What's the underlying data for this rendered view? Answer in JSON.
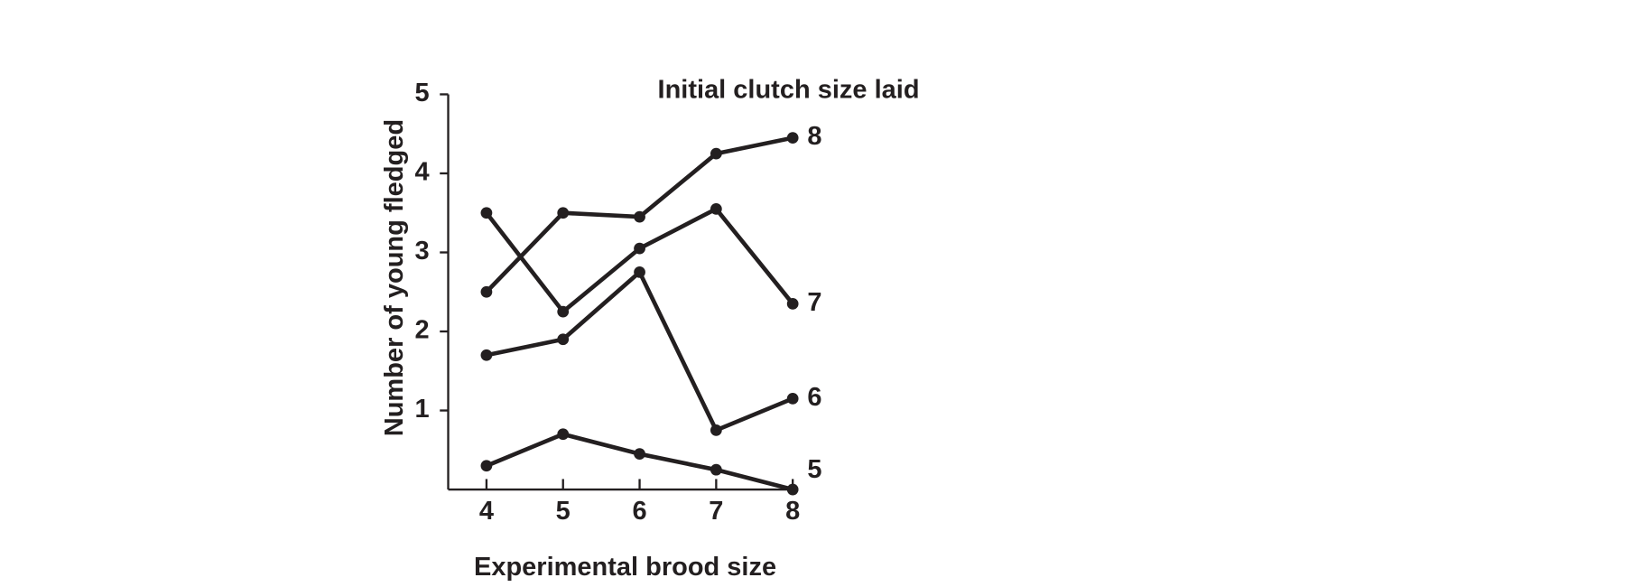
{
  "chart_data": {
    "type": "line",
    "title": "Initial clutch size laid",
    "x_label": "Experimental brood size",
    "y_label": "Number of young fledged",
    "x": [
      4,
      5,
      6,
      7,
      8
    ],
    "xlim": [
      3.5,
      8
    ],
    "xticks": [
      4,
      5,
      6,
      7,
      8
    ],
    "ylim": [
      0,
      5
    ],
    "yticks": [
      1,
      2,
      3,
      4,
      5
    ],
    "series": [
      {
        "name": "8",
        "color": "#231f20",
        "values": [
          2.5,
          3.5,
          3.45,
          4.25,
          4.45
        ]
      },
      {
        "name": "7",
        "color": "#231f20",
        "values": [
          3.5,
          2.25,
          3.05,
          3.55,
          2.35
        ]
      },
      {
        "name": "6",
        "color": "#231f20",
        "values": [
          1.7,
          1.9,
          2.75,
          0.75,
          1.15
        ]
      },
      {
        "name": "5",
        "color": "#231f20",
        "values": [
          0.3,
          0.7,
          0.45,
          0.25,
          0
        ]
      }
    ]
  }
}
